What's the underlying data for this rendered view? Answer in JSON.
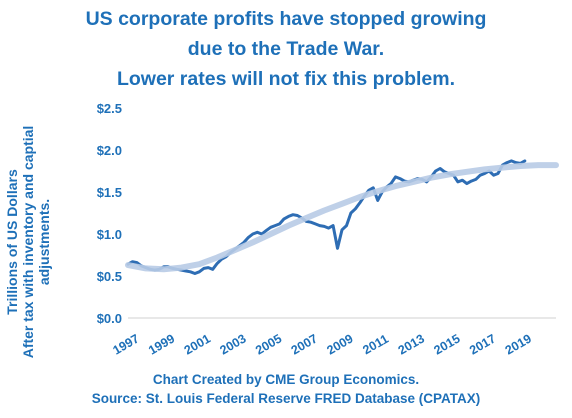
{
  "chart_data": {
    "type": "line",
    "title": [
      "US corporate profits have stopped growing",
      "due to the Trade War.",
      "Lower rates will not fix this problem."
    ],
    "ylabel": [
      "Trillions of US Dollars",
      "After tax with inventory and captial",
      "adjustments."
    ],
    "xlim": [
      1997,
      2021
    ],
    "ylim": [
      0,
      2.5
    ],
    "y_ticks": [
      {
        "value": 0,
        "label": "$0.0"
      },
      {
        "value": 0.5,
        "label": "$0.5"
      },
      {
        "value": 1.0,
        "label": "$1.0"
      },
      {
        "value": 1.5,
        "label": "$1.5"
      },
      {
        "value": 2.0,
        "label": "$2.0"
      },
      {
        "value": 2.5,
        "label": "$2.5"
      }
    ],
    "x_ticks": [
      {
        "value": 1997,
        "label": "1997"
      },
      {
        "value": 1999,
        "label": "1999"
      },
      {
        "value": 2001,
        "label": "2001"
      },
      {
        "value": 2003,
        "label": "2003"
      },
      {
        "value": 2005,
        "label": "2005"
      },
      {
        "value": 2007,
        "label": "2007"
      },
      {
        "value": 2009,
        "label": "2009"
      },
      {
        "value": 2011,
        "label": "2011"
      },
      {
        "value": 2013,
        "label": "2013"
      },
      {
        "value": 2015,
        "label": "2015"
      },
      {
        "value": 2017,
        "label": "2017"
      },
      {
        "value": 2019,
        "label": "2019"
      }
    ],
    "grid": false,
    "series": [
      {
        "color": "#2e6db4",
        "x": [
          1997.0,
          1997.25,
          1997.5,
          1997.75,
          1998.0,
          1998.25,
          1998.5,
          1998.75,
          1999.0,
          1999.25,
          1999.5,
          1999.75,
          2000.0,
          2000.25,
          2000.5,
          2000.75,
          2001.0,
          2001.25,
          2001.5,
          2001.75,
          2002.0,
          2002.25,
          2002.5,
          2002.75,
          2003.0,
          2003.25,
          2003.5,
          2003.75,
          2004.0,
          2004.25,
          2004.5,
          2004.75,
          2005.0,
          2005.25,
          2005.5,
          2005.75,
          2006.0,
          2006.25,
          2006.5,
          2006.75,
          2007.0,
          2007.25,
          2007.5,
          2007.75,
          2008.0,
          2008.25,
          2008.5,
          2008.75,
          2009.0,
          2009.25,
          2009.5,
          2009.75,
          2010.0,
          2010.25,
          2010.5,
          2010.75,
          2011.0,
          2011.25,
          2011.5,
          2011.75,
          2012.0,
          2012.25,
          2012.5,
          2012.75,
          2013.0,
          2013.25,
          2013.5,
          2013.75,
          2014.0,
          2014.25,
          2014.5,
          2014.75,
          2015.0,
          2015.25,
          2015.5,
          2015.75,
          2016.0,
          2016.25,
          2016.5,
          2016.75,
          2017.0,
          2017.25,
          2017.5,
          2017.75,
          2018.0,
          2018.25,
          2018.5,
          2018.75,
          2019.0,
          2019.25
        ],
        "values": [
          0.64,
          0.67,
          0.66,
          0.62,
          0.6,
          0.58,
          0.57,
          0.58,
          0.61,
          0.61,
          0.59,
          0.58,
          0.57,
          0.56,
          0.55,
          0.53,
          0.55,
          0.59,
          0.6,
          0.58,
          0.65,
          0.7,
          0.73,
          0.78,
          0.82,
          0.86,
          0.9,
          0.96,
          1.0,
          1.02,
          1.0,
          1.04,
          1.08,
          1.1,
          1.12,
          1.18,
          1.21,
          1.23,
          1.22,
          1.19,
          1.15,
          1.14,
          1.12,
          1.1,
          1.09,
          1.07,
          1.1,
          0.83,
          1.05,
          1.1,
          1.25,
          1.3,
          1.37,
          1.45,
          1.52,
          1.55,
          1.4,
          1.5,
          1.56,
          1.6,
          1.68,
          1.66,
          1.63,
          1.62,
          1.64,
          1.66,
          1.65,
          1.62,
          1.68,
          1.75,
          1.78,
          1.74,
          1.72,
          1.7,
          1.62,
          1.64,
          1.6,
          1.63,
          1.65,
          1.7,
          1.72,
          1.75,
          1.7,
          1.72,
          1.82,
          1.85,
          1.87,
          1.85,
          1.84,
          1.87
        ]
      },
      {
        "color": "#b8cbe6",
        "x": [
          1997.0,
          1998.0,
          1999.0,
          2000.0,
          2001.0,
          2002.0,
          2003.0,
          2004.0,
          2005.0,
          2006.0,
          2007.0,
          2008.0,
          2009.0,
          2010.0,
          2011.0,
          2012.0,
          2013.0,
          2014.0,
          2015.0,
          2016.0,
          2017.0,
          2018.0,
          2019.0,
          2020.0,
          2021.0
        ],
        "values": [
          0.63,
          0.59,
          0.58,
          0.6,
          0.64,
          0.72,
          0.81,
          0.9,
          1.0,
          1.1,
          1.19,
          1.28,
          1.36,
          1.44,
          1.51,
          1.57,
          1.62,
          1.67,
          1.71,
          1.74,
          1.77,
          1.79,
          1.81,
          1.82,
          1.82
        ]
      }
    ],
    "credits": [
      "Chart Created by CME Group Economics.",
      "Source: St. Louis Federal Reserve FRED Database (CPATAX)"
    ]
  }
}
